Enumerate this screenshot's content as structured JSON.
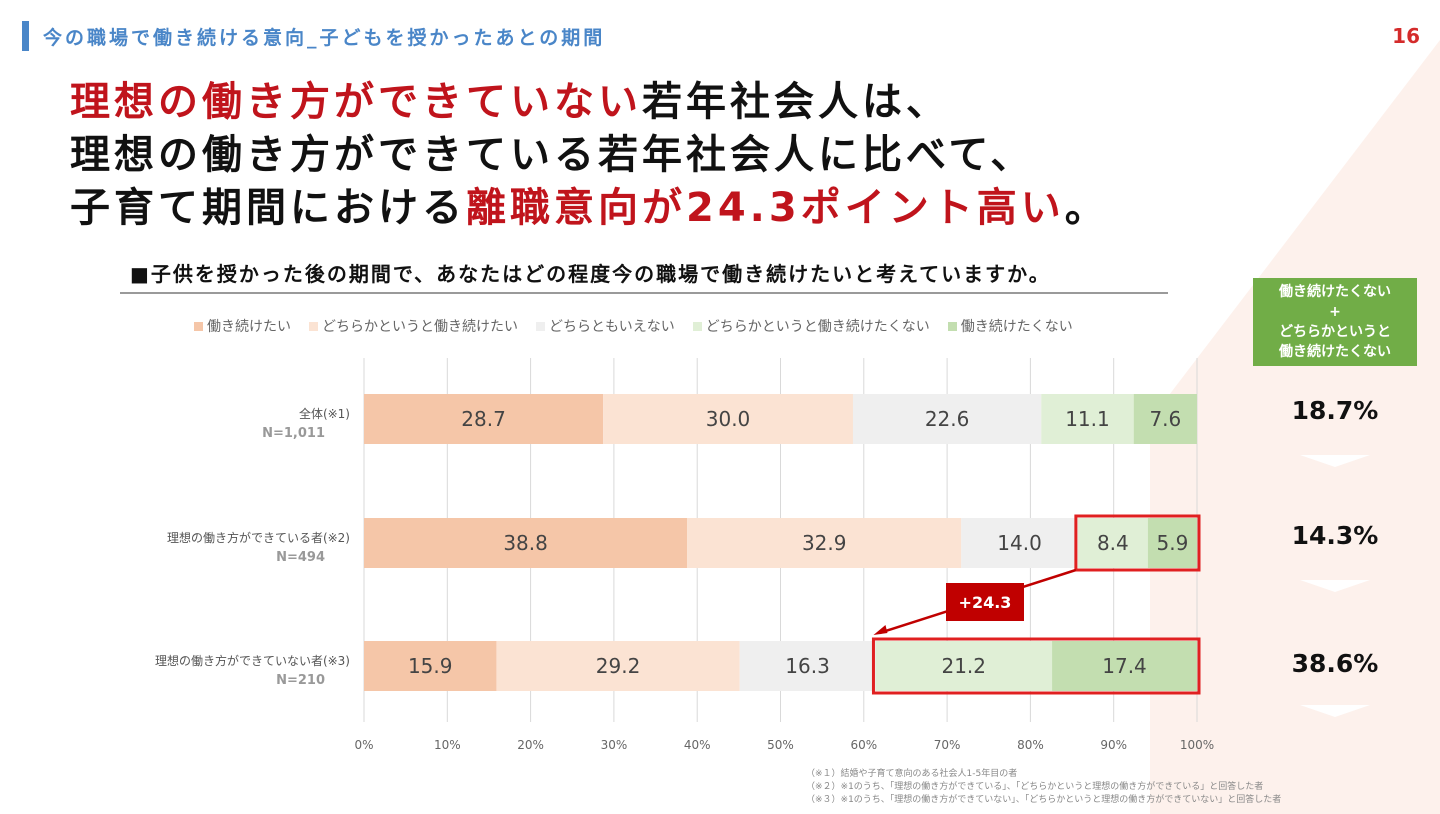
{
  "header": {
    "title": "今の職場で働き続ける意向_子どもを授かったあとの期間",
    "page_number": "16"
  },
  "headline": {
    "line1_red": "理想の働き方ができていない",
    "line1_rest": "若年社会人は、",
    "line2": "理想の働き方ができている若年社会人に比べて、",
    "line3_pre": "子育て期間における",
    "line3_red": "離職意向が24.3ポイント高い",
    "line3_post": "。"
  },
  "question": "■子供を授かった後の期間で、あなたはどの程度今の職場で働き続けたいと考えていますか。",
  "side_panel": {
    "header_line1": "働き続けたくない",
    "header_line2": "+",
    "header_line3": "どちらかというと",
    "header_line4": "働き続けたくない",
    "values": [
      "18.7%",
      "14.3%",
      "38.6%"
    ]
  },
  "annotation": {
    "label": "+24.3"
  },
  "notes": [
    "（※１）結婚や子育て意向のある社会人1-5年目の者",
    "（※２）※1のうち、「理想の働き方ができている」、「どちらかというと理想の働き方ができている」と回答した者",
    "（※３）※1のうち、「理想の働き方ができていない」、「どちらかというと理想の働き方ができていない」と回答した者"
  ],
  "colors": {
    "red_text": "#c0141c",
    "header_blue": "#4a86c8",
    "side_green": "#71ad47",
    "highlight_red": "#e02020",
    "annotation_bg": "#c00000"
  },
  "chart_data": {
    "type": "bar",
    "orientation": "horizontal-stacked",
    "categories": [
      {
        "label": "全体(※1)",
        "n": "N=1,011"
      },
      {
        "label": "理想の働き方ができている者(※2)",
        "n": "N=494"
      },
      {
        "label": "理想の働き方ができていない者(※3)",
        "n": "N=210"
      }
    ],
    "series": [
      {
        "name": "働き続けたい",
        "color": "#f5c6a8",
        "values": [
          28.7,
          38.8,
          15.9
        ]
      },
      {
        "name": "どちらかというと働き続けたい",
        "color": "#fbe3d3",
        "values": [
          30.0,
          32.9,
          29.2
        ]
      },
      {
        "name": "どちらともいえない",
        "color": "#efefef",
        "values": [
          22.6,
          14.0,
          16.3
        ]
      },
      {
        "name": "どちらかというと働き続けたくない",
        "color": "#e0efd6",
        "values": [
          11.1,
          8.4,
          21.2
        ]
      },
      {
        "name": "働き続けたくない",
        "color": "#c3deb0",
        "values": [
          7.6,
          5.9,
          17.4
        ]
      }
    ],
    "x_ticks": [
      "0%",
      "10%",
      "20%",
      "30%",
      "40%",
      "50%",
      "60%",
      "70%",
      "80%",
      "90%",
      "100%"
    ],
    "xlim": [
      0,
      100
    ],
    "grid": true,
    "legend": "top"
  }
}
